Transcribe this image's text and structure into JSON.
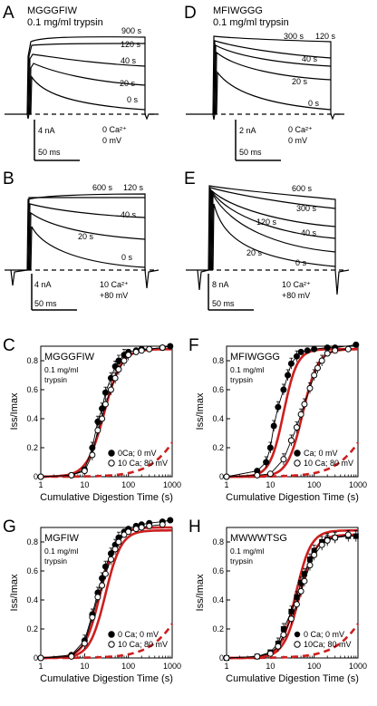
{
  "colors": {
    "fit": "#cc1f1f",
    "trace": "#000000"
  },
  "panels": [
    {
      "id": "A",
      "letter": "A",
      "construct": "MGGGFIW",
      "enzyme": "0.1 mg/ml trypsin",
      "condition": [
        "0 Ca²⁺",
        "0 mV"
      ],
      "scale_current": "4 nA",
      "scale_time": "50 ms",
      "times": [
        "900 s",
        "120 s",
        "40 s",
        "20 s",
        "0 s"
      ]
    },
    {
      "id": "D",
      "letter": "D",
      "construct": "MFIWGGG",
      "enzyme": "0.1 mg/ml trypsin",
      "condition": [
        "0 Ca²⁺",
        "0 mV"
      ],
      "scale_current": "2 nA",
      "scale_time": "50 ms",
      "times": [
        "300 s",
        "120 s",
        "40 s",
        "20 s",
        "0 s"
      ]
    },
    {
      "id": "B",
      "letter": "B",
      "construct": "",
      "enzyme": "",
      "condition": [
        "10 Ca²⁺",
        "+80 mV"
      ],
      "scale_current": "4 nA",
      "scale_time": "50 ms",
      "times": [
        "600 s",
        "120 s",
        "40 s",
        "20 s",
        "0 s"
      ]
    },
    {
      "id": "E",
      "letter": "E",
      "construct": "",
      "enzyme": "",
      "condition": [
        "10 Ca²⁺",
        "+80 mV"
      ],
      "scale_current": "8 nA",
      "scale_time": "50 ms",
      "times": [
        "600 s",
        "300 s",
        "120 s",
        "40 s",
        "20 s",
        "0 s"
      ]
    }
  ],
  "chart_data": [
    {
      "type": "scatter",
      "panel": "C",
      "title": "MGGGFIW",
      "subtitle": [
        "0.1 mg/ml",
        "trypsin"
      ],
      "xlabel": "Cumulative Digestion Time (s)",
      "ylabel": "Iss/Imax",
      "xscale": "log",
      "xlim": [
        1,
        1000
      ],
      "ylim": [
        0,
        0.9
      ],
      "xticks": [
        "1",
        "10",
        "100",
        "1000"
      ],
      "yticks": [
        "0",
        "0.2",
        "0.4",
        "0.6",
        "0.8"
      ],
      "legend": [
        "0Ca;  0 mV",
        "10 Ca; 80 mV"
      ],
      "legend_position": "bottom-right",
      "series": [
        {
          "name": "0Ca;  0 mV",
          "marker": "filled-circle",
          "x": [
            1,
            5,
            10,
            15,
            20,
            25,
            30,
            40,
            50,
            60,
            80,
            100,
            150,
            200,
            300,
            600,
            900
          ],
          "y": [
            0,
            0.01,
            0.05,
            0.2,
            0.38,
            0.47,
            0.58,
            0.68,
            0.76,
            0.8,
            0.84,
            0.86,
            0.87,
            0.88,
            0.88,
            0.89,
            0.9
          ]
        },
        {
          "name": "10 Ca; 80 mV",
          "marker": "open-circle",
          "x": [
            1,
            5,
            10,
            15,
            20,
            25,
            30,
            40,
            50,
            60,
            80,
            100,
            150,
            200,
            300,
            600
          ],
          "y": [
            0,
            0.01,
            0.04,
            0.15,
            0.32,
            0.4,
            0.5,
            0.6,
            0.68,
            0.74,
            0.8,
            0.84,
            0.86,
            0.87,
            0.88,
            0.89
          ]
        }
      ],
      "fits": [
        {
          "style": "solid",
          "t50": 28,
          "n": 2.2,
          "ymax": 0.88
        },
        {
          "style": "dashed",
          "t50": 2500,
          "n": 1.1,
          "ymax": 0.88
        }
      ]
    },
    {
      "type": "scatter",
      "panel": "F",
      "title": "MFIWGGG",
      "subtitle": [
        "0.1 mg/ml",
        "trypsin"
      ],
      "xlabel": "Cumulative Digestion Time (s)",
      "ylabel": "Iss/Imax",
      "xscale": "log",
      "xlim": [
        1,
        1000
      ],
      "ylim": [
        0,
        0.9
      ],
      "xticks": [
        "1",
        "10",
        "100",
        "1000"
      ],
      "yticks": [
        "0",
        "0.2",
        "0.4",
        "0.6",
        "0.8"
      ],
      "legend": [
        "Ca; 0 mV",
        "10 Ca; 80 mV"
      ],
      "legend_position": "bottom-right",
      "series": [
        {
          "name": "Ca; 0 mV",
          "marker": "filled-circle",
          "x": [
            1,
            5,
            8,
            10,
            12,
            15,
            20,
            25,
            30,
            40,
            50,
            70,
            100,
            200,
            300,
            900
          ],
          "y": [
            0,
            0.04,
            0.1,
            0.2,
            0.35,
            0.48,
            0.6,
            0.7,
            0.78,
            0.83,
            0.86,
            0.87,
            0.88,
            0.89,
            0.89,
            0.91
          ]
        },
        {
          "name": "10 Ca; 80 mV",
          "marker": "open-circle",
          "x": [
            1,
            5,
            10,
            20,
            30,
            40,
            50,
            60,
            80,
            100,
            120,
            150,
            200,
            300,
            600
          ],
          "y": [
            0,
            0.01,
            0.02,
            0.12,
            0.25,
            0.34,
            0.43,
            0.5,
            0.61,
            0.7,
            0.75,
            0.8,
            0.85,
            0.87,
            0.88
          ]
        }
      ],
      "fits": [
        {
          "style": "solid",
          "t50": 20,
          "n": 2.8,
          "ymax": 0.88
        },
        {
          "style": "solid",
          "t50": 55,
          "n": 2.5,
          "ymax": 0.88
        },
        {
          "style": "dashed",
          "t50": 2500,
          "n": 1.1,
          "ymax": 0.88
        }
      ]
    },
    {
      "type": "scatter",
      "panel": "G",
      "title": "MGFIW",
      "subtitle": [
        "0.1 mg/ml",
        "trypsin"
      ],
      "xlabel": "Cumulative Digestion Time (s)",
      "ylabel": "Iss/Imax",
      "xscale": "log",
      "xlim": [
        1,
        1000
      ],
      "ylim": [
        0,
        0.9
      ],
      "xticks": [
        "1",
        "10",
        "100",
        "1000"
      ],
      "yticks": [
        "0",
        "0.2",
        "0.4",
        "0.6",
        "0.8"
      ],
      "legend": [
        "0 Ca; 0 mV",
        "10 Ca; 80 mV"
      ],
      "legend_position": "bottom-right",
      "series": [
        {
          "name": "0 Ca; 0 mV",
          "marker": "filled-circle",
          "x": [
            1,
            5,
            10,
            15,
            20,
            25,
            30,
            40,
            50,
            60,
            80,
            100,
            150,
            200,
            300,
            600,
            900
          ],
          "y": [
            0,
            0.02,
            0.12,
            0.3,
            0.45,
            0.55,
            0.63,
            0.72,
            0.78,
            0.83,
            0.87,
            0.89,
            0.91,
            0.92,
            0.93,
            0.94,
            0.95
          ]
        },
        {
          "name": "10 Ca; 80 mV",
          "marker": "open-circle",
          "x": [
            1,
            5,
            10,
            15,
            20,
            25,
            30,
            40,
            50,
            60,
            80,
            100,
            150,
            200,
            300,
            600
          ],
          "y": [
            0,
            0.01,
            0.1,
            0.28,
            0.42,
            0.5,
            0.58,
            0.68,
            0.75,
            0.8,
            0.85,
            0.87,
            0.89,
            0.9,
            0.91,
            0.92
          ]
        }
      ],
      "fits": [
        {
          "style": "solid",
          "t50": 23,
          "n": 2.4,
          "ymax": 0.9
        },
        {
          "style": "solid",
          "t50": 30,
          "n": 2.4,
          "ymax": 0.88
        },
        {
          "style": "dashed",
          "t50": 2500,
          "n": 1.1,
          "ymax": 0.88
        }
      ]
    },
    {
      "type": "scatter",
      "panel": "H",
      "title": "MWWWTSG",
      "subtitle": [
        "0.1 mg/ml",
        "trypsin"
      ],
      "xlabel": "Cumulative Digestion Time (s)",
      "ylabel": "Iss/Imax",
      "xscale": "log",
      "xlim": [
        1,
        1000
      ],
      "ylim": [
        0,
        0.9
      ],
      "xticks": [
        "1",
        "10",
        "100",
        "1000"
      ],
      "yticks": [
        "0",
        "0.2",
        "0.4",
        "0.6",
        "0.8"
      ],
      "legend": [
        "0 Ca; 0 mV",
        "10Ca; 80 mV"
      ],
      "legend_position": "bottom-right",
      "series": [
        {
          "name": "0 Ca; 0 mV",
          "marker": "filled-square",
          "x": [
            1,
            5,
            10,
            15,
            20,
            30,
            40,
            50,
            60,
            80,
            100,
            150,
            200,
            300,
            600,
            900
          ],
          "y": [
            0,
            0.01,
            0.04,
            0.1,
            0.2,
            0.32,
            0.42,
            0.52,
            0.58,
            0.68,
            0.74,
            0.8,
            0.82,
            0.83,
            0.84,
            0.84
          ]
        },
        {
          "name": "10Ca; 80 mV",
          "marker": "open-circle",
          "x": [
            1,
            5,
            10,
            15,
            20,
            30,
            40,
            50,
            60,
            80,
            100,
            150,
            200,
            300,
            600
          ],
          "y": [
            0,
            0.01,
            0.03,
            0.08,
            0.16,
            0.27,
            0.37,
            0.46,
            0.53,
            0.64,
            0.71,
            0.78,
            0.81,
            0.83,
            0.85
          ]
        }
      ],
      "fits": [
        {
          "style": "solid",
          "t50": 38,
          "n": 2.5,
          "ymax": 0.88
        },
        {
          "style": "solid",
          "t50": 46,
          "n": 2.4,
          "ymax": 0.85
        },
        {
          "style": "dashed",
          "t50": 2500,
          "n": 1.1,
          "ymax": 0.88
        }
      ]
    }
  ]
}
